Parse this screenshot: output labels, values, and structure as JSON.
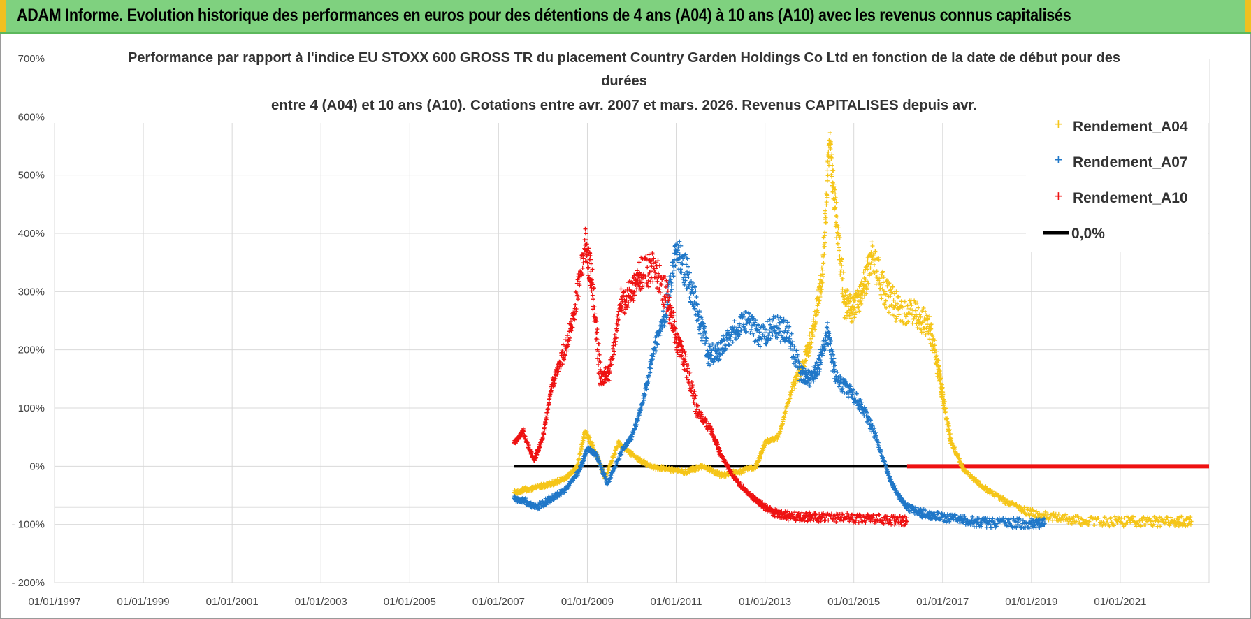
{
  "banner": {
    "title": "ADAM Informe. Evolution historique des performances en euros pour des détentions de 4 ans (A04) à 10 ans (A10) avec les revenus connus capitalisés"
  },
  "colors": {
    "banner_bg": "#7fd17f",
    "a04": "#f5c518",
    "a07": "#1f77c8",
    "a10": "#ee1111",
    "zero": "#000000",
    "grid": "#d9d9d9"
  },
  "chart_data": {
    "type": "scatter",
    "title_lines": [
      "Performance par rapport à l'indice EU STOXX 600 GROSS TR  du placement Country Garden Holdings Co Ltd en fonction de la date de début pour des",
      "durées",
      "entre 4 (A04) et 10 ans (A10).  Cotations entre avr. 2007 et mars. 2026.  Revenus CAPITALISES depuis avr."
    ],
    "x_ticks": [
      "01/01/1997",
      "01/01/1999",
      "01/01/2001",
      "01/01/2003",
      "01/01/2005",
      "01/01/2007",
      "01/01/2009",
      "01/01/2011",
      "01/01/2013",
      "01/01/2015",
      "01/01/2017",
      "01/01/2019",
      "01/01/2021"
    ],
    "x_range": [
      1997.0,
      2023.0
    ],
    "y_ticks": [
      "700%",
      "600%",
      "500%",
      "400%",
      "300%",
      "200%",
      "100%",
      "0%",
      "- 100%",
      "- 200%"
    ],
    "y_range": [
      -200,
      700
    ],
    "legend": [
      "Rendement_A04",
      "Rendement_A07",
      "Rendement_A10",
      "0,0%"
    ],
    "series": [
      {
        "name": "Rendement_A04",
        "x": [
          2007.35,
          2007.6,
          2007.9,
          2008.2,
          2008.5,
          2008.75,
          2008.95,
          2009.2,
          2009.4,
          2009.7,
          2010.0,
          2010.4,
          2010.8,
          2011.2,
          2011.6,
          2012.0,
          2012.4,
          2012.8,
          2013.0,
          2013.3,
          2013.6,
          2013.9,
          2014.1,
          2014.3,
          2014.45,
          2014.6,
          2014.8,
          2015.0,
          2015.2,
          2015.4,
          2015.7,
          2016.0,
          2016.4,
          2016.7,
          2016.9,
          2017.0,
          2017.2,
          2017.5,
          2017.9,
          2018.3,
          2018.8,
          2019.3,
          2019.8,
          2020.3,
          2021.0,
          2021.6,
          2022.2,
          2022.6
        ],
        "y": [
          -45,
          -40,
          -35,
          -30,
          -20,
          -5,
          60,
          20,
          -20,
          40,
          20,
          0,
          -5,
          -10,
          0,
          -15,
          -10,
          0,
          40,
          50,
          130,
          180,
          240,
          330,
          560,
          430,
          280,
          270,
          300,
          360,
          300,
          270,
          260,
          240,
          170,
          120,
          40,
          -10,
          -35,
          -55,
          -75,
          -85,
          -90,
          -95,
          -95,
          -95,
          -95,
          -95
        ]
      },
      {
        "name": "Rendement_A07",
        "x": [
          2007.35,
          2007.6,
          2007.85,
          2008.2,
          2008.5,
          2008.8,
          2009.0,
          2009.2,
          2009.45,
          2009.8,
          2010.0,
          2010.25,
          2010.5,
          2010.75,
          2011.0,
          2011.25,
          2011.5,
          2011.75,
          2012.0,
          2012.3,
          2012.6,
          2012.9,
          2013.2,
          2013.5,
          2013.8,
          2014.0,
          2014.2,
          2014.4,
          2014.6,
          2014.9,
          2015.2,
          2015.5,
          2015.8,
          2016.0,
          2016.2,
          2016.5,
          2016.8,
          2017.2,
          2017.6,
          2018.0,
          2018.5,
          2019.0,
          2019.3
        ],
        "y": [
          -55,
          -60,
          -70,
          -55,
          -40,
          -10,
          30,
          20,
          -30,
          30,
          50,
          110,
          200,
          260,
          370,
          330,
          260,
          190,
          200,
          230,
          250,
          220,
          240,
          230,
          160,
          150,
          170,
          230,
          150,
          130,
          100,
          50,
          -20,
          -50,
          -70,
          -80,
          -85,
          -90,
          -95,
          -97,
          -97,
          -98,
          -98
        ]
      },
      {
        "name": "Rendement_A10",
        "x": [
          2007.35,
          2007.55,
          2007.8,
          2008.0,
          2008.2,
          2008.45,
          2008.7,
          2008.95,
          2009.1,
          2009.3,
          2009.5,
          2009.75,
          2010.0,
          2010.2,
          2010.5,
          2010.8,
          2011.0,
          2011.2,
          2011.5,
          2011.8,
          2012.0,
          2012.3,
          2012.6,
          2012.9,
          2013.2,
          2013.5,
          2013.9,
          2014.3,
          2014.8,
          2015.3,
          2015.8,
          2016.2
        ],
        "y": [
          40,
          60,
          10,
          50,
          140,
          190,
          260,
          380,
          320,
          150,
          160,
          280,
          300,
          330,
          340,
          290,
          220,
          180,
          90,
          60,
          20,
          -20,
          -45,
          -65,
          -80,
          -85,
          -87,
          -88,
          -89,
          -90,
          -92,
          -95
        ]
      }
    ],
    "zero_line": {
      "x_start": 2007.35,
      "x_end": 2016.2,
      "y": 0
    },
    "zero_red_line": {
      "x_start": 2016.2,
      "x_end": 2023.0,
      "y": 0
    }
  }
}
